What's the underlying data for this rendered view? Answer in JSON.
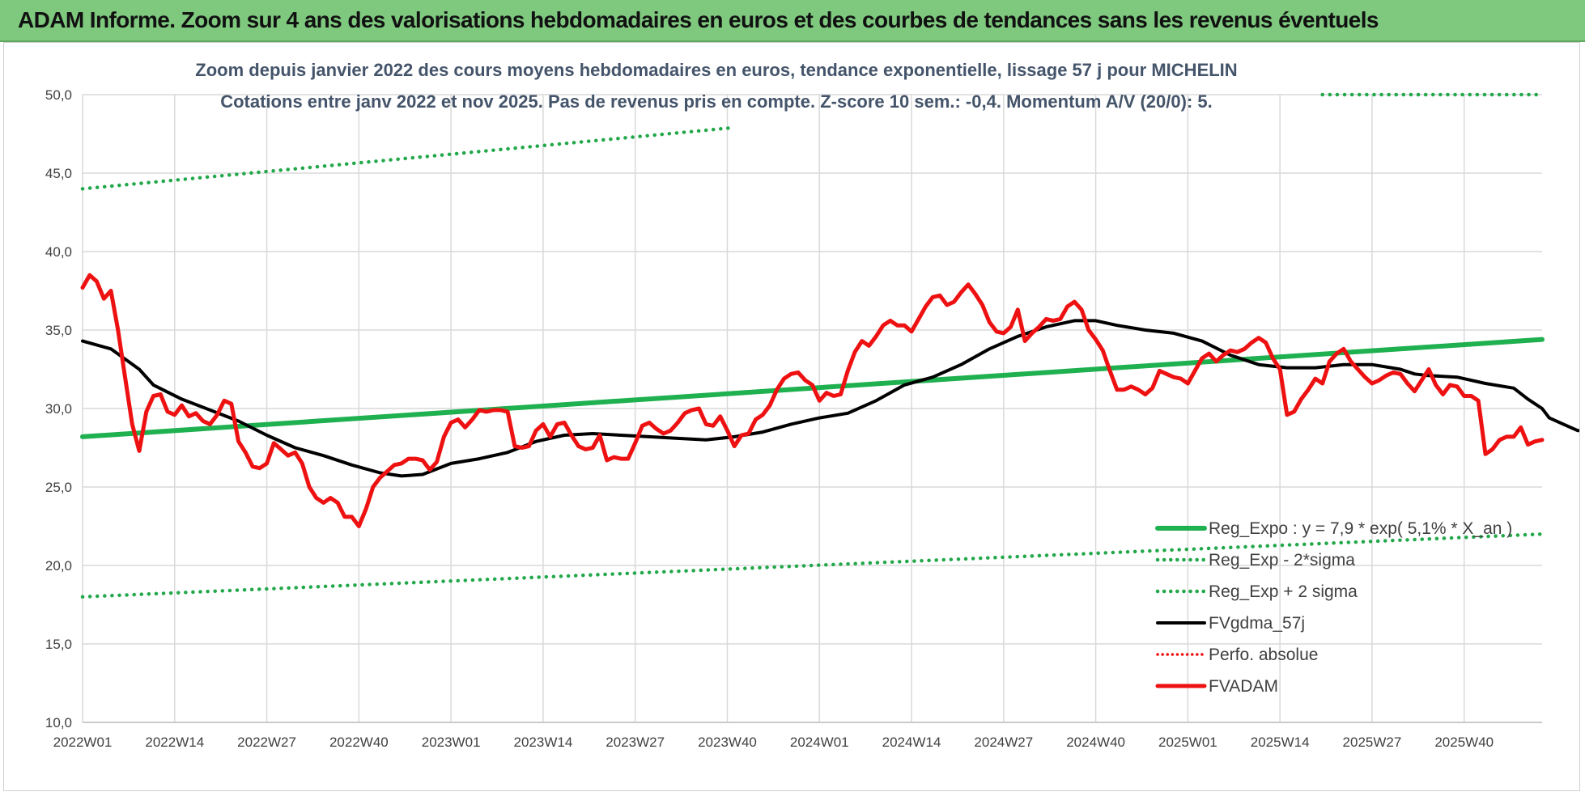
{
  "banner": {
    "title": "ADAM Informe. Zoom sur 4 ans des valorisations hebdomadaires en euros et des courbes de tendances sans les revenus éventuels"
  },
  "colors": {
    "banner_bg": "#7fc97f",
    "trend_green": "#1fb050",
    "dotted_green": "#22a84a",
    "black": "#000000",
    "red": "#ee1111",
    "grid": "#d9d9d9",
    "subtitle": "#44546a"
  },
  "chart_data": {
    "type": "line",
    "title": "Zoom depuis janvier 2022 des cours moyens hebdomadaires en euros, tendance exponentielle, lissage 57 j pour MICHELIN",
    "subtitle": "Cotations entre janv 2022 et nov 2025. Pas de revenus pris en compte. Z-score 10 sem.: -0,4. Momentum A/V (20/0): 5.",
    "xlabel": "",
    "ylabel": "",
    "ylim": [
      10,
      50
    ],
    "yticks": [
      "10,0",
      "15,0",
      "20,0",
      "25,0",
      "30,0",
      "35,0",
      "40,0",
      "45,0",
      "50,0"
    ],
    "xtick_labels": [
      "2022W01",
      "2022W14",
      "2022W27",
      "2022W40",
      "2023W01",
      "2023W14",
      "2023W27",
      "2023W40",
      "2024W01",
      "2024W14",
      "2024W27",
      "2024W40",
      "2025W01",
      "2025W14",
      "2025W27",
      "2025W40"
    ],
    "x_index_range": [
      0,
      206
    ],
    "grid": true,
    "legend_position": "lower-right",
    "legend": [
      {
        "key": "reg_expo",
        "label": "Reg_Expo : y = 7,9 * exp( 5,1% * X_an )",
        "style": "solid-green"
      },
      {
        "key": "reg_minus",
        "label": "Reg_Exp - 2*sigma",
        "style": "dotted-green"
      },
      {
        "key": "reg_plus",
        "label": "Reg_Exp + 2 sigma",
        "style": "dotted-green"
      },
      {
        "key": "fvgdma",
        "label": "FVgdma_57j",
        "style": "solid-black"
      },
      {
        "key": "perfo",
        "label": "Perfo. absolue",
        "style": "dotted-red"
      },
      {
        "key": "fvadam",
        "label": "FVADAM",
        "style": "solid-red"
      }
    ],
    "series": [
      {
        "name": "Reg_Expo",
        "points": [
          [
            0,
            28.2
          ],
          [
            206,
            34.4
          ]
        ]
      },
      {
        "name": "Reg_Exp - 2*sigma",
        "points": [
          [
            0,
            18.0
          ],
          [
            206,
            22.0
          ]
        ]
      },
      {
        "name": "Reg_Exp + 2 sigma",
        "points": [
          [
            0,
            44.0
          ],
          [
            92,
            47.9
          ],
          [
            175,
            50.0
          ],
          [
            206,
            50.0
          ]
        ],
        "hidden_ranges": [
          [
            92.5,
            175
          ]
        ]
      },
      {
        "name": "FVgdma_57j",
        "points": [
          [
            0,
            34.3
          ],
          [
            4,
            33.8
          ],
          [
            8,
            32.5
          ],
          [
            10,
            31.5
          ],
          [
            14,
            30.6
          ],
          [
            18,
            29.9
          ],
          [
            22,
            29.2
          ],
          [
            26,
            28.3
          ],
          [
            30,
            27.5
          ],
          [
            34,
            27.0
          ],
          [
            38,
            26.4
          ],
          [
            42,
            25.9
          ],
          [
            45,
            25.7
          ],
          [
            48,
            25.8
          ],
          [
            52,
            26.5
          ],
          [
            56,
            26.8
          ],
          [
            60,
            27.2
          ],
          [
            64,
            27.9
          ],
          [
            68,
            28.3
          ],
          [
            72,
            28.4
          ],
          [
            76,
            28.3
          ],
          [
            80,
            28.2
          ],
          [
            84,
            28.1
          ],
          [
            88,
            28.0
          ],
          [
            92,
            28.2
          ],
          [
            96,
            28.5
          ],
          [
            100,
            29.0
          ],
          [
            104,
            29.4
          ],
          [
            108,
            29.7
          ],
          [
            112,
            30.5
          ],
          [
            116,
            31.5
          ],
          [
            120,
            32.0
          ],
          [
            124,
            32.8
          ],
          [
            128,
            33.8
          ],
          [
            132,
            34.6
          ],
          [
            136,
            35.2
          ],
          [
            140,
            35.6
          ],
          [
            143,
            35.6
          ],
          [
            146,
            35.3
          ],
          [
            150,
            35.0
          ],
          [
            154,
            34.8
          ],
          [
            158,
            34.3
          ],
          [
            162,
            33.4
          ],
          [
            166,
            32.8
          ],
          [
            170,
            32.6
          ],
          [
            174,
            32.6
          ],
          [
            178,
            32.8
          ],
          [
            182,
            32.8
          ],
          [
            186,
            32.5
          ],
          [
            188,
            32.2
          ],
          [
            190,
            32.1
          ],
          [
            194,
            32.0
          ],
          [
            198,
            31.6
          ],
          [
            202,
            31.3
          ],
          [
            204,
            30.6
          ],
          [
            206,
            30.0
          ],
          [
            207,
            29.4
          ],
          [
            209,
            29.0
          ],
          [
            211,
            28.6
          ],
          [
            212,
            28.6
          ]
        ]
      },
      {
        "name": "FVADAM",
        "points": [
          [
            0,
            37.7
          ],
          [
            1,
            38.5
          ],
          [
            2,
            38.1
          ],
          [
            3,
            37.0
          ],
          [
            4,
            37.5
          ],
          [
            5,
            35.0
          ],
          [
            6,
            32.0
          ],
          [
            7,
            29.0
          ],
          [
            8,
            27.3
          ],
          [
            9,
            29.8
          ],
          [
            10,
            30.8
          ],
          [
            11,
            30.9
          ],
          [
            12,
            29.8
          ],
          [
            13,
            29.6
          ],
          [
            14,
            30.2
          ],
          [
            15,
            29.5
          ],
          [
            16,
            29.7
          ],
          [
            17,
            29.2
          ],
          [
            18,
            29.0
          ],
          [
            19,
            29.6
          ],
          [
            20,
            30.5
          ],
          [
            21,
            30.3
          ],
          [
            22,
            27.9
          ],
          [
            23,
            27.2
          ],
          [
            24,
            26.3
          ],
          [
            25,
            26.2
          ],
          [
            26,
            26.5
          ],
          [
            27,
            27.8
          ],
          [
            28,
            27.4
          ],
          [
            29,
            27.0
          ],
          [
            30,
            27.2
          ],
          [
            31,
            26.5
          ],
          [
            32,
            25.0
          ],
          [
            33,
            24.3
          ],
          [
            34,
            24.0
          ],
          [
            35,
            24.3
          ],
          [
            36,
            24.0
          ],
          [
            37,
            23.1
          ],
          [
            38,
            23.1
          ],
          [
            39,
            22.5
          ],
          [
            40,
            23.6
          ],
          [
            41,
            25.0
          ],
          [
            42,
            25.6
          ],
          [
            43,
            26.0
          ],
          [
            44,
            26.4
          ],
          [
            45,
            26.5
          ],
          [
            46,
            26.8
          ],
          [
            47,
            26.8
          ],
          [
            48,
            26.7
          ],
          [
            49,
            26.1
          ],
          [
            50,
            26.6
          ],
          [
            51,
            28.2
          ],
          [
            52,
            29.1
          ],
          [
            53,
            29.3
          ],
          [
            54,
            28.8
          ],
          [
            55,
            29.3
          ],
          [
            56,
            29.9
          ],
          [
            57,
            29.8
          ],
          [
            58,
            29.9
          ],
          [
            59,
            29.9
          ],
          [
            60,
            29.8
          ],
          [
            61,
            27.6
          ],
          [
            62,
            27.5
          ],
          [
            63,
            27.6
          ],
          [
            64,
            28.6
          ],
          [
            65,
            29.0
          ],
          [
            66,
            28.2
          ],
          [
            67,
            29.0
          ],
          [
            68,
            29.1
          ],
          [
            69,
            28.3
          ],
          [
            70,
            27.6
          ],
          [
            71,
            27.4
          ],
          [
            72,
            27.5
          ],
          [
            73,
            28.3
          ],
          [
            74,
            26.7
          ],
          [
            75,
            26.9
          ],
          [
            76,
            26.8
          ],
          [
            77,
            26.8
          ],
          [
            78,
            27.8
          ],
          [
            79,
            28.9
          ],
          [
            80,
            29.1
          ],
          [
            81,
            28.7
          ],
          [
            82,
            28.4
          ],
          [
            83,
            28.6
          ],
          [
            84,
            29.1
          ],
          [
            85,
            29.7
          ],
          [
            86,
            29.9
          ],
          [
            87,
            30.0
          ],
          [
            88,
            29.0
          ],
          [
            89,
            28.9
          ],
          [
            90,
            29.5
          ],
          [
            91,
            28.6
          ],
          [
            92,
            27.6
          ],
          [
            93,
            28.3
          ],
          [
            94,
            28.4
          ],
          [
            95,
            29.3
          ],
          [
            96,
            29.6
          ],
          [
            97,
            30.2
          ],
          [
            98,
            31.2
          ],
          [
            99,
            31.9
          ],
          [
            100,
            32.2
          ],
          [
            101,
            32.3
          ],
          [
            102,
            31.8
          ],
          [
            103,
            31.5
          ],
          [
            104,
            30.5
          ],
          [
            105,
            31.0
          ],
          [
            106,
            30.8
          ],
          [
            107,
            30.9
          ],
          [
            108,
            32.4
          ],
          [
            109,
            33.6
          ],
          [
            110,
            34.3
          ],
          [
            111,
            34.0
          ],
          [
            112,
            34.6
          ],
          [
            113,
            35.3
          ],
          [
            114,
            35.6
          ],
          [
            115,
            35.3
          ],
          [
            116,
            35.3
          ],
          [
            117,
            34.9
          ],
          [
            118,
            35.7
          ],
          [
            119,
            36.5
          ],
          [
            120,
            37.1
          ],
          [
            121,
            37.2
          ],
          [
            122,
            36.6
          ],
          [
            123,
            36.8
          ],
          [
            124,
            37.4
          ],
          [
            125,
            37.9
          ],
          [
            126,
            37.3
          ],
          [
            127,
            36.6
          ],
          [
            128,
            35.5
          ],
          [
            129,
            34.9
          ],
          [
            130,
            34.8
          ],
          [
            131,
            35.2
          ],
          [
            132,
            36.3
          ],
          [
            133,
            34.3
          ],
          [
            134,
            34.8
          ],
          [
            135,
            35.2
          ],
          [
            136,
            35.7
          ],
          [
            137,
            35.6
          ],
          [
            138,
            35.7
          ],
          [
            139,
            36.5
          ],
          [
            140,
            36.8
          ],
          [
            141,
            36.3
          ],
          [
            142,
            35.0
          ],
          [
            143,
            34.4
          ],
          [
            144,
            33.7
          ],
          [
            145,
            32.4
          ],
          [
            146,
            31.2
          ],
          [
            147,
            31.2
          ],
          [
            148,
            31.4
          ],
          [
            149,
            31.2
          ],
          [
            150,
            30.9
          ],
          [
            151,
            31.3
          ],
          [
            152,
            32.4
          ],
          [
            153,
            32.2
          ],
          [
            154,
            32.0
          ],
          [
            155,
            31.9
          ],
          [
            156,
            31.6
          ],
          [
            157,
            32.4
          ],
          [
            158,
            33.2
          ],
          [
            159,
            33.5
          ],
          [
            160,
            33.0
          ],
          [
            161,
            33.4
          ],
          [
            162,
            33.7
          ],
          [
            163,
            33.6
          ],
          [
            164,
            33.8
          ],
          [
            165,
            34.2
          ],
          [
            166,
            34.5
          ],
          [
            167,
            34.2
          ],
          [
            168,
            33.2
          ],
          [
            169,
            32.5
          ],
          [
            170,
            29.6
          ],
          [
            171,
            29.8
          ],
          [
            172,
            30.6
          ],
          [
            173,
            31.2
          ],
          [
            174,
            31.9
          ],
          [
            175,
            31.6
          ],
          [
            176,
            33.0
          ],
          [
            177,
            33.5
          ],
          [
            178,
            33.8
          ],
          [
            179,
            33.0
          ],
          [
            180,
            32.5
          ],
          [
            181,
            32.0
          ],
          [
            182,
            31.6
          ],
          [
            183,
            31.8
          ],
          [
            184,
            32.1
          ],
          [
            185,
            32.3
          ],
          [
            186,
            32.2
          ],
          [
            187,
            31.6
          ],
          [
            188,
            31.1
          ],
          [
            189,
            31.8
          ],
          [
            190,
            32.5
          ],
          [
            191,
            31.5
          ],
          [
            192,
            30.9
          ],
          [
            193,
            31.5
          ],
          [
            194,
            31.4
          ],
          [
            195,
            30.8
          ],
          [
            196,
            30.8
          ],
          [
            197,
            30.5
          ],
          [
            198,
            27.1
          ],
          [
            199,
            27.4
          ],
          [
            200,
            28.0
          ],
          [
            201,
            28.2
          ],
          [
            202,
            28.2
          ],
          [
            203,
            28.8
          ],
          [
            204,
            27.7
          ],
          [
            205,
            27.9
          ],
          [
            206,
            28.0
          ]
        ]
      },
      {
        "name": "Perfo. absolue",
        "points": []
      }
    ]
  }
}
